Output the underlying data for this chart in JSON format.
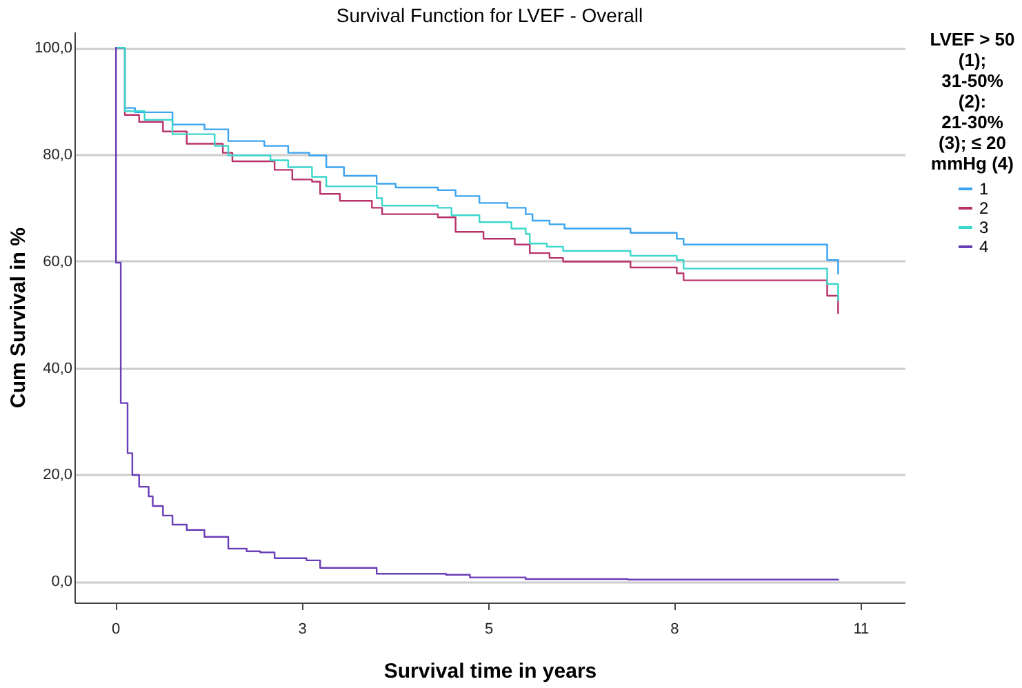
{
  "chart_data": {
    "type": "step",
    "title": "Survival Function for LVEF - Overall",
    "xlabel": "Survival time in years",
    "ylabel": "Cum Survival in %",
    "legend_title": "LVEF > 50 (1); 31-50% (2): 21-30% (3); ≤ 20 mmHg (4)",
    "xlim": [
      -0.6,
      11.6
    ],
    "xticks": [
      {
        "value": 0,
        "label": "0"
      },
      {
        "value": 2.74,
        "label": "3"
      },
      {
        "value": 5.48,
        "label": "5"
      },
      {
        "value": 8.21,
        "label": "8"
      },
      {
        "value": 10.95,
        "label": "11"
      }
    ],
    "ylim": [
      -4,
      103
    ],
    "yticks": [
      {
        "value": 0,
        "label": "0,0"
      },
      {
        "value": 20,
        "label": "20,0"
      },
      {
        "value": 40,
        "label": "40,0"
      },
      {
        "value": 60,
        "label": "60,0"
      },
      {
        "value": 80,
        "label": "80,0"
      },
      {
        "value": 100,
        "label": "100,0"
      }
    ],
    "grid": "y",
    "legend": "right",
    "line_style": "solid",
    "marker": "none",
    "series": [
      {
        "name": "1",
        "color": "#3ba3f0",
        "x": [
          0,
          0.14,
          0.29,
          0.84,
          1.31,
          1.66,
          2.19,
          2.54,
          2.85,
          3.1,
          3.36,
          3.84,
          4.12,
          4.74,
          5.0,
          5.35,
          5.76,
          6.03,
          6.13,
          6.38,
          6.6,
          7.57,
          8.25,
          8.35,
          10.46,
          10.62
        ],
        "values": [
          100,
          88.7,
          87.9,
          85.6,
          84.7,
          82.5,
          81.6,
          80.3,
          79.8,
          77.6,
          76.0,
          74.5,
          73.8,
          73.3,
          72.2,
          70.9,
          70.0,
          68.8,
          67.6,
          66.9,
          66.1,
          65.3,
          64.2,
          63.1,
          60.2,
          57.5
        ]
      },
      {
        "name": "2",
        "color": "#b8326a",
        "x": [
          0,
          0.14,
          0.35,
          0.7,
          1.05,
          1.58,
          1.72,
          2.34,
          2.6,
          2.89,
          3.01,
          3.3,
          3.77,
          3.92,
          4.74,
          5.0,
          5.41,
          5.87,
          6.09,
          6.38,
          6.58,
          7.57,
          8.25,
          8.35,
          10.46,
          10.62
        ],
        "values": [
          100,
          87.4,
          86.1,
          84.3,
          82.0,
          80.3,
          78.7,
          77.1,
          75.3,
          74.9,
          72.6,
          71.3,
          70.0,
          68.8,
          68.2,
          65.5,
          64.2,
          63.1,
          61.5,
          60.6,
          59.9,
          58.8,
          57.7,
          56.4,
          53.5,
          50.1
        ]
      },
      {
        "name": "3",
        "color": "#3bd6cc",
        "x": [
          0,
          0.14,
          0.43,
          0.84,
          1.46,
          1.66,
          2.28,
          2.54,
          2.89,
          3.1,
          3.84,
          3.92,
          4.74,
          4.94,
          5.35,
          5.82,
          6.03,
          6.09,
          6.34,
          6.58,
          7.57,
          8.25,
          8.35,
          10.46,
          10.62
        ],
        "values": [
          100,
          88.1,
          86.5,
          83.8,
          81.6,
          79.8,
          78.9,
          77.6,
          75.8,
          74.0,
          71.8,
          70.4,
          70.0,
          68.6,
          67.3,
          66.1,
          65.1,
          63.3,
          62.7,
          61.9,
          61.0,
          60.2,
          58.6,
          55.7,
          52.5
        ]
      },
      {
        "name": "4",
        "color": "#6a3db8",
        "x": [
          0,
          0.01,
          0.08,
          0.18,
          0.25,
          0.35,
          0.49,
          0.55,
          0.7,
          0.84,
          1.05,
          1.31,
          1.66,
          1.93,
          2.13,
          2.34,
          2.81,
          3.01,
          3.84,
          4.86,
          5.21,
          6.03,
          7.53,
          10.62
        ],
        "values": [
          100,
          59.7,
          33.4,
          24.0,
          19.9,
          17.7,
          15.9,
          14.1,
          12.3,
          10.6,
          9.6,
          8.3,
          6.1,
          5.6,
          5.4,
          4.3,
          3.9,
          2.5,
          1.4,
          1.2,
          0.7,
          0.4,
          0.3,
          0.1
        ]
      }
    ]
  }
}
